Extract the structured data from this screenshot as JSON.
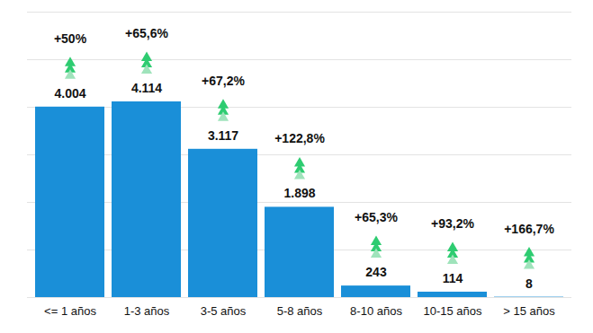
{
  "chart_data": {
    "type": "bar",
    "categories": [
      "<= 1 años",
      "1-3 años",
      "3-5 años",
      "5-8 años",
      "8-10 años",
      "10-15 años",
      "> 15 años"
    ],
    "values": [
      4004,
      4114,
      3117,
      1898,
      243,
      114,
      8
    ],
    "value_labels": [
      "4.004",
      "4.114",
      "3.117",
      "1.898",
      "243",
      "114",
      "8"
    ],
    "annotations": [
      "+50%",
      "+65,6%",
      "+67,2%",
      "+122,8%",
      "+65,3%",
      "+93,2%",
      "+166,7%"
    ],
    "color": "#1a8fd8",
    "ylim": [
      0,
      6000
    ],
    "yticks": [
      0,
      1000,
      2000,
      3000,
      4000,
      5000,
      6000
    ],
    "grid": true,
    "data_labels": true,
    "tick_labels": "x"
  }
}
